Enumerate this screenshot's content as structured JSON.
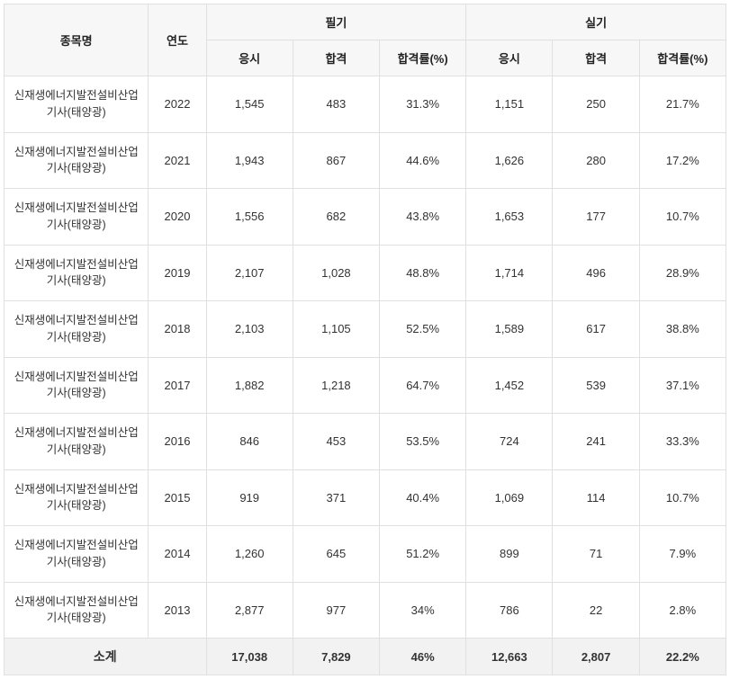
{
  "type": "table",
  "colors": {
    "border": "#e0e0e0",
    "header_bg": "#f7f7f7",
    "footer_bg": "#f2f2f2",
    "text": "#333333",
    "background": "#ffffff"
  },
  "typography": {
    "base_size_pt": 13,
    "name_size_pt": 12.5,
    "footer_label_size_pt": 14,
    "font_family": "Malgun Gothic"
  },
  "headers": {
    "name": "종목명",
    "year": "연도",
    "written": "필기",
    "practical": "실기",
    "applied": "응시",
    "passed": "합격",
    "rate": "합격률(%)"
  },
  "rows": [
    {
      "name": "신재생에너지발전설비산업기사(태양광)",
      "year": "2022",
      "w_app": "1,545",
      "w_pass": "483",
      "w_rate": "31.3%",
      "p_app": "1,151",
      "p_pass": "250",
      "p_rate": "21.7%"
    },
    {
      "name": "신재생에너지발전설비산업기사(태양광)",
      "year": "2021",
      "w_app": "1,943",
      "w_pass": "867",
      "w_rate": "44.6%",
      "p_app": "1,626",
      "p_pass": "280",
      "p_rate": "17.2%"
    },
    {
      "name": "신재생에너지발전설비산업기사(태양광)",
      "year": "2020",
      "w_app": "1,556",
      "w_pass": "682",
      "w_rate": "43.8%",
      "p_app": "1,653",
      "p_pass": "177",
      "p_rate": "10.7%"
    },
    {
      "name": "신재생에너지발전설비산업기사(태양광)",
      "year": "2019",
      "w_app": "2,107",
      "w_pass": "1,028",
      "w_rate": "48.8%",
      "p_app": "1,714",
      "p_pass": "496",
      "p_rate": "28.9%"
    },
    {
      "name": "신재생에너지발전설비산업기사(태양광)",
      "year": "2018",
      "w_app": "2,103",
      "w_pass": "1,105",
      "w_rate": "52.5%",
      "p_app": "1,589",
      "p_pass": "617",
      "p_rate": "38.8%"
    },
    {
      "name": "신재생에너지발전설비산업기사(태양광)",
      "year": "2017",
      "w_app": "1,882",
      "w_pass": "1,218",
      "w_rate": "64.7%",
      "p_app": "1,452",
      "p_pass": "539",
      "p_rate": "37.1%"
    },
    {
      "name": "신재생에너지발전설비산업기사(태양광)",
      "year": "2016",
      "w_app": "846",
      "w_pass": "453",
      "w_rate": "53.5%",
      "p_app": "724",
      "p_pass": "241",
      "p_rate": "33.3%"
    },
    {
      "name": "신재생에너지발전설비산업기사(태양광)",
      "year": "2015",
      "w_app": "919",
      "w_pass": "371",
      "w_rate": "40.4%",
      "p_app": "1,069",
      "p_pass": "114",
      "p_rate": "10.7%"
    },
    {
      "name": "신재생에너지발전설비산업기사(태양광)",
      "year": "2014",
      "w_app": "1,260",
      "w_pass": "645",
      "w_rate": "51.2%",
      "p_app": "899",
      "p_pass": "71",
      "p_rate": "7.9%"
    },
    {
      "name": "신재생에너지발전설비산업기사(태양광)",
      "year": "2013",
      "w_app": "2,877",
      "w_pass": "977",
      "w_rate": "34%",
      "p_app": "786",
      "p_pass": "22",
      "p_rate": "2.8%"
    }
  ],
  "subtotal": {
    "label": "소계",
    "w_app": "17,038",
    "w_pass": "7,829",
    "w_rate": "46%",
    "p_app": "12,663",
    "p_pass": "2,807",
    "p_rate": "22.2%"
  }
}
